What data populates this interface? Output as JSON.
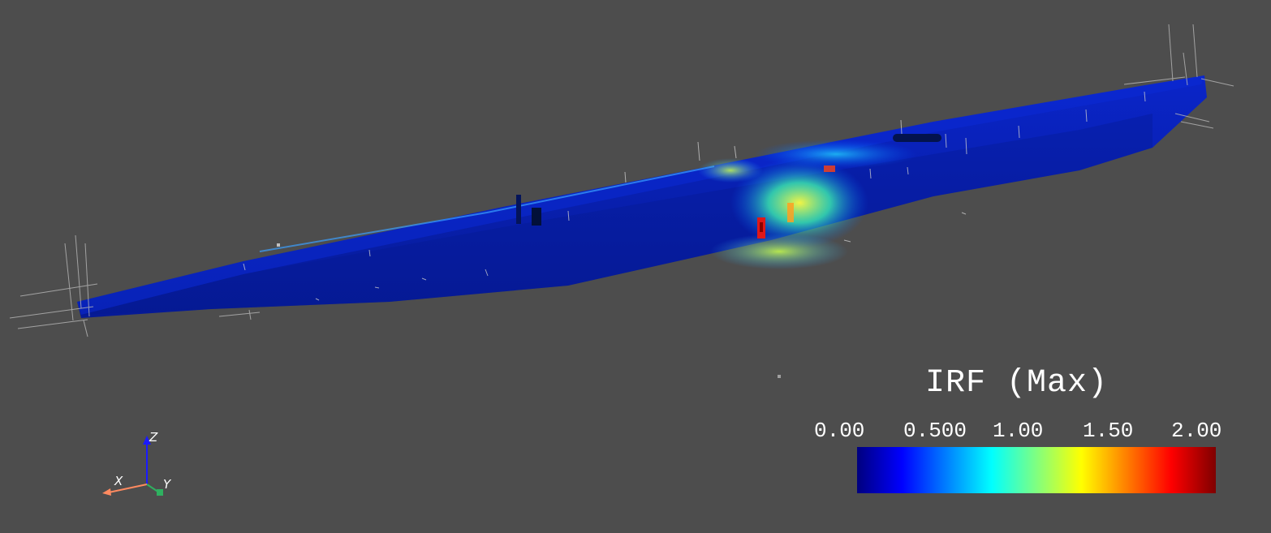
{
  "legend": {
    "title": "IRF (Max)",
    "ticks": [
      "0.00",
      "0.500",
      "1.00",
      "1.50",
      "2.00"
    ],
    "colormap": [
      "#00007f",
      "#0000ff",
      "#0080ff",
      "#00ffff",
      "#80ff80",
      "#ffff00",
      "#ff8000",
      "#ff0000",
      "#7f0000"
    ]
  },
  "orientation_axes": {
    "x_label": "X",
    "y_label": "Y",
    "z_label": "Z",
    "x_color": "#ff8a60",
    "y_color": "#2fb060",
    "z_color": "#1a1aff"
  },
  "colors": {
    "background": "#4d4d4d",
    "hull_base": "#0a1fb8"
  }
}
